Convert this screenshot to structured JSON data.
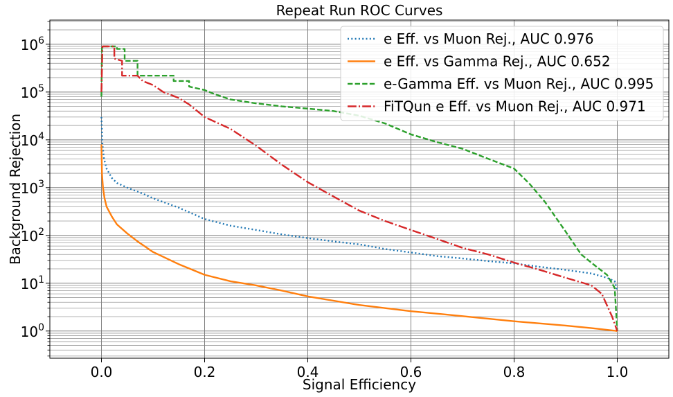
{
  "chart_data": {
    "type": "line",
    "title": "Repeat Run ROC Curves",
    "xlabel": "Signal Efficiency",
    "ylabel": "Background Rejection",
    "xlim": [
      -0.1,
      1.1
    ],
    "ylim": [
      0.27,
      3200000
    ],
    "yscale": "log",
    "grid": "both (major and minor)",
    "legend_position": "top-right",
    "x_ticks": [
      {
        "value": 0.0,
        "label": "0.0"
      },
      {
        "value": 0.2,
        "label": "0.2"
      },
      {
        "value": 0.4,
        "label": "0.4"
      },
      {
        "value": 0.6,
        "label": "0.6"
      },
      {
        "value": 0.8,
        "label": "0.8"
      },
      {
        "value": 1.0,
        "label": "1.0"
      }
    ],
    "y_ticks": [
      {
        "value": 1,
        "base": "10",
        "exp": "0"
      },
      {
        "value": 10,
        "base": "10",
        "exp": "1"
      },
      {
        "value": 100,
        "base": "10",
        "exp": "2"
      },
      {
        "value": 1000,
        "base": "10",
        "exp": "3"
      },
      {
        "value": 10000,
        "base": "10",
        "exp": "4"
      },
      {
        "value": 100000,
        "base": "10",
        "exp": "5"
      },
      {
        "value": 1000000,
        "base": "10",
        "exp": "6"
      }
    ],
    "series": [
      {
        "name": "e Eff. vs Muon Rej., AUC 0.976",
        "color": "#1f77b4",
        "dash": "dotted",
        "points": [
          [
            0.0,
            30000
          ],
          [
            0.002,
            8000
          ],
          [
            0.005,
            4000
          ],
          [
            0.01,
            2500
          ],
          [
            0.02,
            1600
          ],
          [
            0.03,
            1250
          ],
          [
            0.05,
            1000
          ],
          [
            0.08,
            750
          ],
          [
            0.1,
            600
          ],
          [
            0.15,
            380
          ],
          [
            0.2,
            220
          ],
          [
            0.25,
            160
          ],
          [
            0.3,
            130
          ],
          [
            0.35,
            105
          ],
          [
            0.4,
            88
          ],
          [
            0.45,
            75
          ],
          [
            0.5,
            65
          ],
          [
            0.55,
            52
          ],
          [
            0.6,
            44
          ],
          [
            0.65,
            37
          ],
          [
            0.7,
            33
          ],
          [
            0.75,
            29
          ],
          [
            0.8,
            26
          ],
          [
            0.85,
            22
          ],
          [
            0.9,
            19
          ],
          [
            0.95,
            16
          ],
          [
            0.98,
            13
          ],
          [
            0.995,
            11
          ],
          [
            1.0,
            7
          ]
        ]
      },
      {
        "name": "e Eff. vs Gamma Rej., AUC 0.652",
        "color": "#ff7f0e",
        "dash": "solid",
        "points": [
          [
            0.0,
            8000
          ],
          [
            0.001,
            2000
          ],
          [
            0.003,
            1000
          ],
          [
            0.006,
            600
          ],
          [
            0.01,
            400
          ],
          [
            0.02,
            250
          ],
          [
            0.03,
            170
          ],
          [
            0.05,
            110
          ],
          [
            0.07,
            75
          ],
          [
            0.1,
            45
          ],
          [
            0.15,
            25
          ],
          [
            0.2,
            15
          ],
          [
            0.25,
            11
          ],
          [
            0.3,
            9
          ],
          [
            0.35,
            7
          ],
          [
            0.4,
            5.3
          ],
          [
            0.5,
            3.5
          ],
          [
            0.6,
            2.6
          ],
          [
            0.7,
            2.05
          ],
          [
            0.8,
            1.6
          ],
          [
            0.9,
            1.3
          ],
          [
            0.95,
            1.15
          ],
          [
            1.0,
            1.0
          ]
        ]
      },
      {
        "name": "e-Gamma Eff. vs Muon Rej., AUC 0.995",
        "color": "#2ca02c",
        "dash": "dashed",
        "points": [
          [
            0.0,
            80000
          ],
          [
            0.001,
            900000
          ],
          [
            0.03,
            900000
          ],
          [
            0.03,
            800000
          ],
          [
            0.045,
            800000
          ],
          [
            0.045,
            450000
          ],
          [
            0.07,
            450000
          ],
          [
            0.07,
            220000
          ],
          [
            0.14,
            220000
          ],
          [
            0.14,
            170000
          ],
          [
            0.17,
            170000
          ],
          [
            0.17,
            130000
          ],
          [
            0.2,
            110000
          ],
          [
            0.22,
            90000
          ],
          [
            0.25,
            70000
          ],
          [
            0.3,
            58000
          ],
          [
            0.35,
            50000
          ],
          [
            0.4,
            45000
          ],
          [
            0.45,
            40000
          ],
          [
            0.5,
            32000
          ],
          [
            0.55,
            22000
          ],
          [
            0.6,
            13000
          ],
          [
            0.65,
            9000
          ],
          [
            0.7,
            6500
          ],
          [
            0.75,
            4000
          ],
          [
            0.8,
            2500
          ],
          [
            0.83,
            1200
          ],
          [
            0.86,
            500
          ],
          [
            0.9,
            120
          ],
          [
            0.93,
            40
          ],
          [
            0.96,
            22
          ],
          [
            0.98,
            15
          ],
          [
            0.995,
            8
          ],
          [
            1.0,
            1
          ]
        ]
      },
      {
        "name": "FiTQun e Eff. vs Muon Rej., AUC 0.971",
        "color": "#d62728",
        "dash": "dashdot",
        "points": [
          [
            0.0,
            100000
          ],
          [
            0.002,
            900000
          ],
          [
            0.025,
            900000
          ],
          [
            0.025,
            500000
          ],
          [
            0.04,
            450000
          ],
          [
            0.04,
            220000
          ],
          [
            0.07,
            220000
          ],
          [
            0.08,
            170000
          ],
          [
            0.1,
            140000
          ],
          [
            0.12,
            100000
          ],
          [
            0.15,
            75000
          ],
          [
            0.17,
            55000
          ],
          [
            0.2,
            30000
          ],
          [
            0.25,
            17000
          ],
          [
            0.3,
            7500
          ],
          [
            0.35,
            3000
          ],
          [
            0.4,
            1300
          ],
          [
            0.45,
            650
          ],
          [
            0.5,
            330
          ],
          [
            0.55,
            200
          ],
          [
            0.6,
            130
          ],
          [
            0.65,
            85
          ],
          [
            0.7,
            55
          ],
          [
            0.75,
            40
          ],
          [
            0.8,
            27
          ],
          [
            0.85,
            19
          ],
          [
            0.9,
            13
          ],
          [
            0.95,
            9
          ],
          [
            0.97,
            6
          ],
          [
            0.99,
            2
          ],
          [
            1.0,
            1
          ]
        ]
      }
    ]
  }
}
